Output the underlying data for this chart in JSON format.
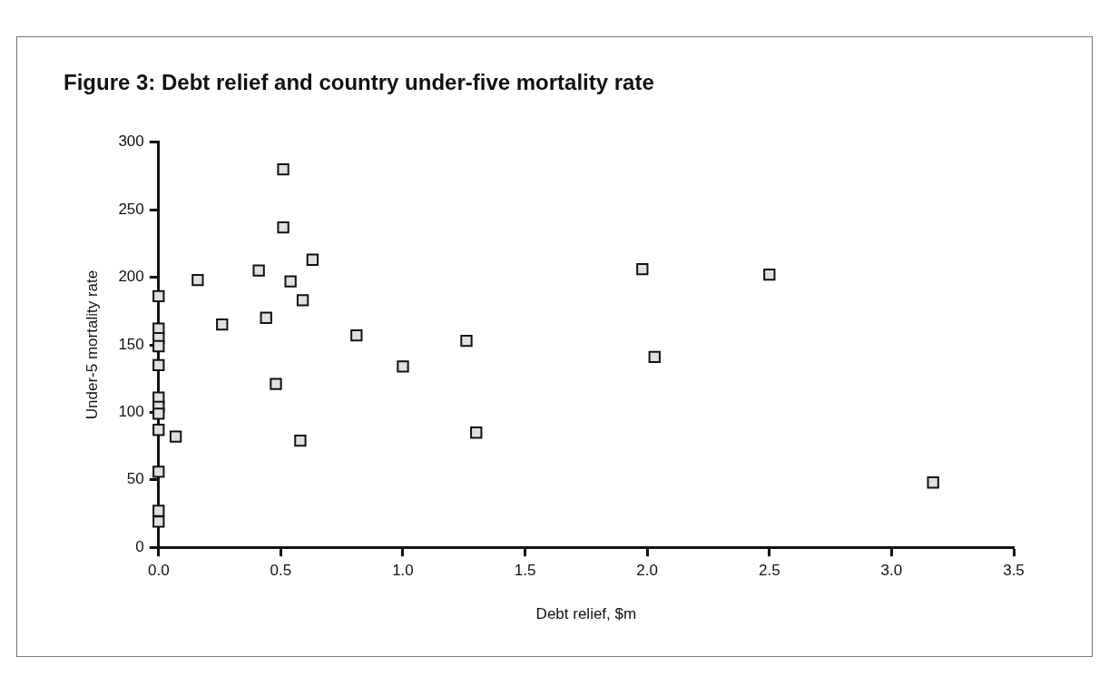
{
  "chart_data": {
    "type": "scatter",
    "title": "Figure 3: Debt relief and country under-five mortality rate",
    "xlabel": "Debt relief, $m",
    "ylabel": "Under-5 mortality rate",
    "series": [
      {
        "color": "#e0e0e0",
        "x": [
          0.51,
          0.51,
          0.63,
          0.41,
          0.16,
          0.54,
          0.59,
          0.44,
          0.26,
          0.81,
          0.48,
          0.58,
          0.07,
          1.98,
          2.5,
          1.26,
          1.0,
          2.03,
          1.3,
          3.17,
          0,
          0,
          0,
          0,
          0,
          0,
          0,
          0,
          0,
          0,
          0,
          0
        ],
        "values": [
          280,
          237,
          213,
          205,
          198,
          197,
          183,
          170,
          165,
          157,
          121,
          79,
          82,
          206,
          202,
          153,
          134,
          141,
          85,
          48,
          186,
          162,
          155,
          149,
          135,
          111,
          104,
          99,
          87,
          56,
          27,
          19
        ]
      }
    ],
    "xlim": [
      0,
      3.5
    ],
    "ylim": [
      0,
      300
    ],
    "xticks": [
      {
        "value": 0,
        "label": "0.0"
      },
      0.5,
      {
        "value": 1,
        "label": "1.0"
      },
      1.5,
      {
        "value": 2,
        "label": "2.0"
      },
      2.5,
      {
        "value": 3,
        "label": "3.0"
      },
      3.5
    ],
    "yticks": [
      0,
      50,
      100,
      150,
      200,
      250,
      300
    ],
    "grid": false,
    "legend": false,
    "marker": "square"
  }
}
